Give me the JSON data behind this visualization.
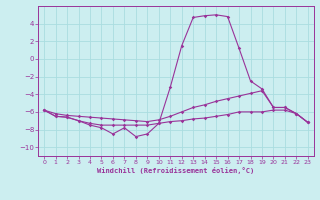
{
  "xlabel": "Windchill (Refroidissement éolien,°C)",
  "bg_color": "#cceef0",
  "grid_color": "#aadde0",
  "line_color": "#993399",
  "xlim": [
    -0.5,
    23.5
  ],
  "ylim": [
    -11,
    6
  ],
  "yticks": [
    -10,
    -8,
    -6,
    -4,
    -2,
    0,
    2,
    4
  ],
  "xticks": [
    0,
    1,
    2,
    3,
    4,
    5,
    6,
    7,
    8,
    9,
    10,
    11,
    12,
    13,
    14,
    15,
    16,
    17,
    18,
    19,
    20,
    21,
    22,
    23
  ],
  "series_main": [
    [
      0,
      -5.8
    ],
    [
      1,
      -6.5
    ],
    [
      2,
      -6.6
    ],
    [
      3,
      -7.0
    ],
    [
      4,
      -7.5
    ],
    [
      5,
      -7.8
    ],
    [
      6,
      -8.5
    ],
    [
      7,
      -7.8
    ],
    [
      8,
      -8.8
    ],
    [
      9,
      -8.5
    ],
    [
      10,
      -7.3
    ],
    [
      11,
      -3.2
    ],
    [
      12,
      1.5
    ],
    [
      13,
      4.7
    ],
    [
      14,
      4.9
    ],
    [
      15,
      5.0
    ],
    [
      16,
      4.8
    ],
    [
      17,
      1.2
    ],
    [
      18,
      -2.5
    ],
    [
      19,
      -3.4
    ],
    [
      20,
      -5.5
    ],
    [
      21,
      -5.5
    ],
    [
      22,
      -6.2
    ],
    [
      23,
      -7.2
    ]
  ],
  "series_upper": [
    [
      0,
      -5.8
    ],
    [
      1,
      -6.2
    ],
    [
      2,
      -6.4
    ],
    [
      3,
      -6.5
    ],
    [
      4,
      -6.6
    ],
    [
      5,
      -6.7
    ],
    [
      6,
      -6.8
    ],
    [
      7,
      -6.9
    ],
    [
      8,
      -7.0
    ],
    [
      9,
      -7.1
    ],
    [
      10,
      -6.9
    ],
    [
      11,
      -6.5
    ],
    [
      12,
      -6.0
    ],
    [
      13,
      -5.5
    ],
    [
      14,
      -5.2
    ],
    [
      15,
      -4.8
    ],
    [
      16,
      -4.5
    ],
    [
      17,
      -4.2
    ],
    [
      18,
      -3.9
    ],
    [
      19,
      -3.6
    ],
    [
      20,
      -5.5
    ],
    [
      21,
      -5.5
    ],
    [
      22,
      -6.2
    ],
    [
      23,
      -7.2
    ]
  ],
  "series_lower": [
    [
      0,
      -5.8
    ],
    [
      1,
      -6.5
    ],
    [
      2,
      -6.6
    ],
    [
      3,
      -7.0
    ],
    [
      4,
      -7.3
    ],
    [
      5,
      -7.5
    ],
    [
      6,
      -7.5
    ],
    [
      7,
      -7.5
    ],
    [
      8,
      -7.5
    ],
    [
      9,
      -7.5
    ],
    [
      10,
      -7.3
    ],
    [
      11,
      -7.1
    ],
    [
      12,
      -7.0
    ],
    [
      13,
      -6.8
    ],
    [
      14,
      -6.7
    ],
    [
      15,
      -6.5
    ],
    [
      16,
      -6.3
    ],
    [
      17,
      -6.0
    ],
    [
      18,
      -6.0
    ],
    [
      19,
      -6.0
    ],
    [
      20,
      -5.8
    ],
    [
      21,
      -5.8
    ],
    [
      22,
      -6.2
    ],
    [
      23,
      -7.2
    ]
  ]
}
